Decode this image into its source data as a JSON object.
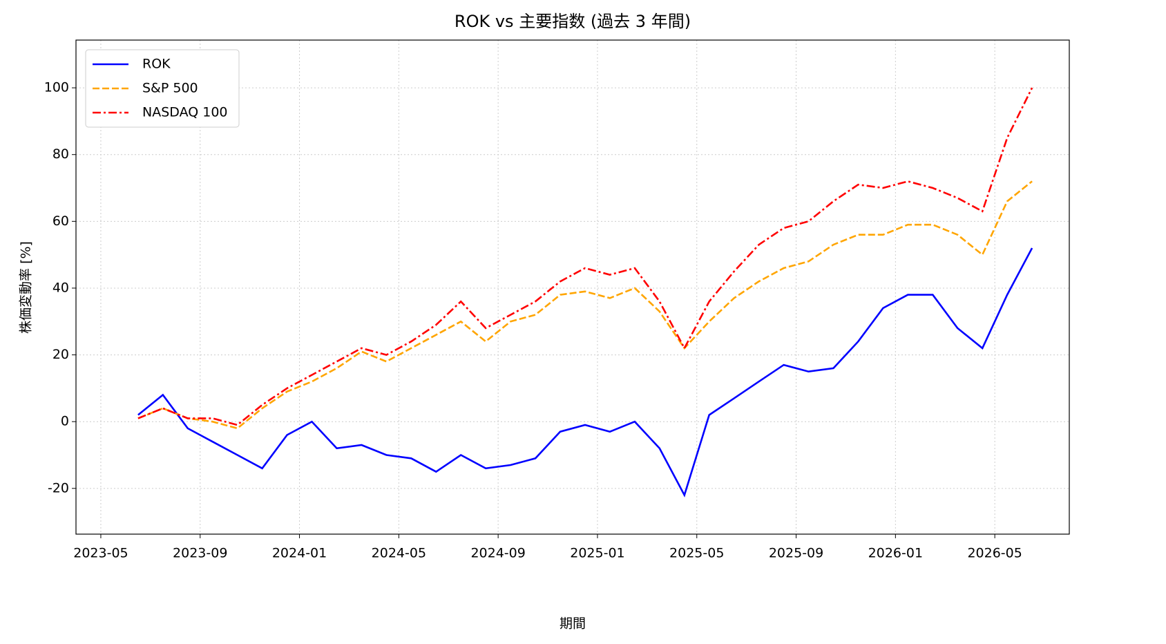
{
  "chart_data": {
    "type": "line",
    "title": "ROK vs 主要指数 (過去 3 年間)",
    "x_label": "期間",
    "y_label": "株価変動率 [%]",
    "x": [
      "2023-06",
      "2023-07",
      "2023-08",
      "2023-09",
      "2023-10",
      "2023-11",
      "2023-12",
      "2024-01",
      "2024-02",
      "2024-03",
      "2024-04",
      "2024-05",
      "2024-06",
      "2024-07",
      "2024-08",
      "2024-09",
      "2024-10",
      "2024-11",
      "2024-12",
      "2025-01",
      "2025-02",
      "2025-03",
      "2025-04",
      "2025-05",
      "2025-06",
      "2025-07",
      "2025-08",
      "2025-09",
      "2025-10",
      "2025-11",
      "2025-12",
      "2026-01",
      "2026-02",
      "2026-03",
      "2026-04",
      "2026-05",
      "2026-06"
    ],
    "series": [
      {
        "name": "ROK",
        "color": "#0000ff",
        "linestyle": "solid",
        "values": [
          2,
          8,
          -2,
          -6,
          -10,
          -14,
          -4,
          0,
          -8,
          -7,
          -10,
          -11,
          -15,
          -10,
          -14,
          -13,
          -11,
          -3,
          -1,
          -3,
          0,
          -8,
          -22,
          2,
          7,
          12,
          17,
          15,
          16,
          24,
          34,
          38,
          38,
          28,
          22,
          38,
          52
        ]
      },
      {
        "name": "S&P 500",
        "color": "#ffa500",
        "linestyle": "dashed",
        "values": [
          1,
          4,
          1,
          0,
          -2,
          4,
          9,
          12,
          16,
          21,
          18,
          22,
          26,
          30,
          24,
          30,
          32,
          38,
          39,
          37,
          40,
          33,
          22,
          30,
          37,
          42,
          46,
          48,
          53,
          56,
          56,
          59,
          59,
          56,
          50,
          66,
          72
        ]
      },
      {
        "name": "NASDAQ 100",
        "color": "#ff0000",
        "linestyle": "dashdot",
        "values": [
          1,
          4,
          1,
          1,
          -1,
          5,
          10,
          14,
          18,
          22,
          20,
          24,
          29,
          36,
          28,
          32,
          36,
          42,
          46,
          44,
          46,
          36,
          22,
          36,
          45,
          53,
          58,
          60,
          66,
          71,
          70,
          72,
          70,
          67,
          63,
          85,
          100
        ]
      }
    ],
    "xlim": [
      "2023-04",
      "2026-08"
    ],
    "xticks": [
      "2023-05",
      "2023-09",
      "2024-01",
      "2024-05",
      "2024-09",
      "2025-01",
      "2025-05",
      "2025-09",
      "2026-01",
      "2026-05"
    ],
    "ylim": [
      -33.7,
      114.3
    ],
    "yticks": [
      -20,
      0,
      20,
      40,
      60,
      80,
      100
    ],
    "grid": true,
    "legend": "upper-left"
  }
}
